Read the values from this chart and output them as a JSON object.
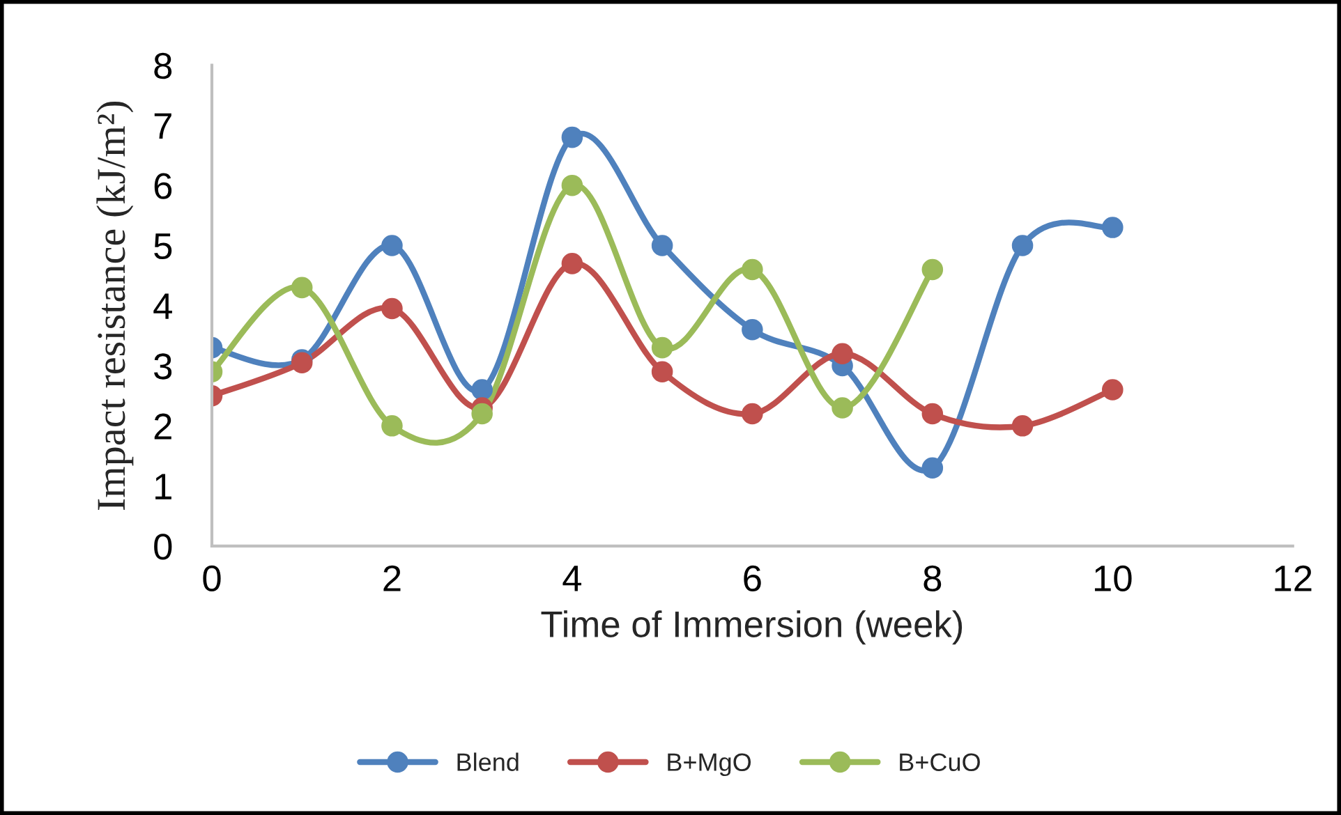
{
  "chart_data": {
    "type": "line",
    "xlabel": "Time of Immersion (week)",
    "ylabel": "Impact resistance (kJ/m²)",
    "xlim": [
      0,
      12
    ],
    "xticks": [
      0,
      2,
      4,
      6,
      8,
      10,
      12
    ],
    "ylim": [
      0,
      8
    ],
    "yticks": [
      0,
      1,
      2,
      3,
      4,
      5,
      6,
      7,
      8
    ],
    "grid": false,
    "legend": "bottom",
    "marker": "circle",
    "line_style": "solid",
    "series": [
      {
        "name": "Blend",
        "color": "#4f81bd",
        "x": [
          0,
          1,
          2,
          3,
          4,
          5,
          6,
          7,
          8,
          9,
          10
        ],
        "values": [
          3.3,
          3.1,
          5.0,
          2.6,
          6.8,
          5.0,
          3.6,
          3.0,
          1.3,
          5.0,
          5.3
        ]
      },
      {
        "name": "B+MgO",
        "color": "#c0504d",
        "x": [
          0,
          1,
          2,
          3,
          4,
          5,
          6,
          7,
          8,
          9,
          10
        ],
        "values": [
          2.5,
          3.05,
          3.95,
          2.3,
          4.7,
          2.9,
          2.2,
          3.2,
          2.2,
          2.0,
          2.6
        ]
      },
      {
        "name": "B+CuO",
        "color": "#9bbb59",
        "x": [
          0,
          1,
          2,
          3,
          4,
          5,
          6,
          7,
          8
        ],
        "values": [
          2.9,
          4.3,
          2.0,
          2.2,
          6.0,
          3.3,
          4.6,
          2.3,
          4.6
        ]
      }
    ]
  }
}
